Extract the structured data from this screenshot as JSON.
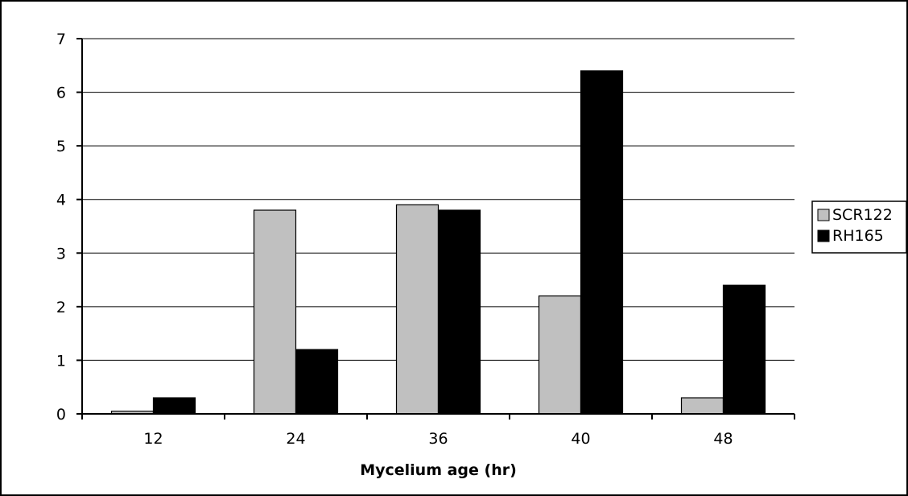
{
  "chart_data": {
    "type": "bar",
    "categories": [
      "12",
      "24",
      "36",
      "40",
      "48"
    ],
    "series": [
      {
        "name": "SCR122",
        "values": [
          0.05,
          3.8,
          3.9,
          2.2,
          0.3
        ],
        "color": "#c0c0c0"
      },
      {
        "name": "RH165",
        "values": [
          0.3,
          1.2,
          3.8,
          6.4,
          2.4
        ],
        "color": "#000000"
      }
    ],
    "title": "",
    "xlabel": "Mycelium age (hr)",
    "ylabel": "",
    "ylim": [
      0,
      7
    ],
    "yticks": [
      "0",
      "1",
      "2",
      "3",
      "4",
      "5",
      "6",
      "7"
    ],
    "grid": true,
    "legend_position": "right"
  }
}
